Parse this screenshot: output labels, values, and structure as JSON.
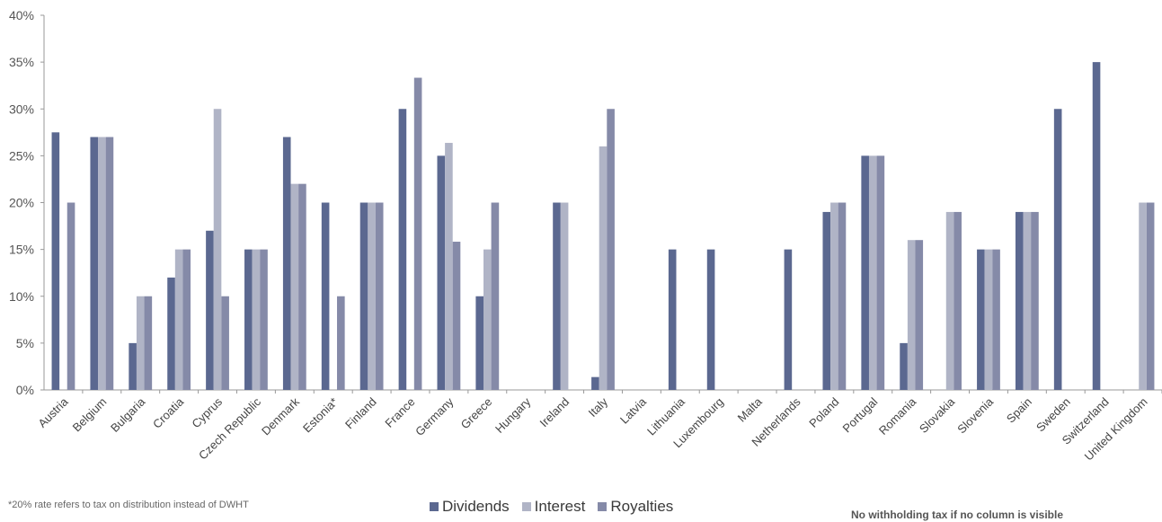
{
  "chart_data": {
    "type": "bar",
    "y_axis": {
      "min": 0,
      "max": 40,
      "tick_labels": [
        "0%",
        "5%",
        "10%",
        "15%",
        "20%",
        "25%",
        "30%",
        "35%",
        "40%"
      ],
      "tick_values": [
        0,
        5,
        10,
        15,
        20,
        25,
        30,
        35,
        40
      ]
    },
    "categories": [
      "Austria",
      "Belgium",
      "Bulgaria",
      "Croatia",
      "Cyprus",
      "Czech Republic",
      "Denmark",
      "Estonia*",
      "Finland",
      "France",
      "Germany",
      "Greece",
      "Hungary",
      "Ireland",
      "Italy",
      "Latvia",
      "Lithuania",
      "Luxembourg",
      "Malta",
      "Netherlands",
      "Poland",
      "Portugal",
      "Romania",
      "Slovakia",
      "Slovenia",
      "Spain",
      "Sweden",
      "Switzerland",
      "United Kingdom"
    ],
    "series": [
      {
        "name": "Dividends",
        "color": "#5b6890",
        "values": [
          27.5,
          27,
          5,
          12,
          17,
          15,
          27,
          20,
          20,
          30,
          25,
          10,
          0,
          20,
          1.375,
          0,
          15,
          15,
          0,
          15,
          19,
          25,
          5,
          0,
          15,
          19,
          30,
          35,
          0
        ]
      },
      {
        "name": "Interest",
        "color": "#b0b4c6",
        "values": [
          0,
          27,
          10,
          15,
          30,
          15,
          22,
          0,
          20,
          0,
          26.375,
          15,
          0,
          20,
          26,
          0,
          0,
          0,
          0,
          0,
          20,
          25,
          16,
          19,
          15,
          19,
          0,
          0,
          20
        ]
      },
      {
        "name": "Royalties",
        "color": "#858aa8",
        "values": [
          20,
          27,
          10,
          15,
          10,
          15,
          22,
          10,
          20,
          33.33,
          15.825,
          20,
          0,
          0,
          30,
          0,
          0,
          0,
          0,
          0,
          20,
          25,
          16,
          19,
          15,
          19,
          0,
          0,
          20
        ]
      }
    ],
    "legend_position": "bottom-center",
    "grid": false
  },
  "footnote": "*20% rate refers to tax on distribution instead of DWHT",
  "note": "No withholding tax if no column is visible"
}
